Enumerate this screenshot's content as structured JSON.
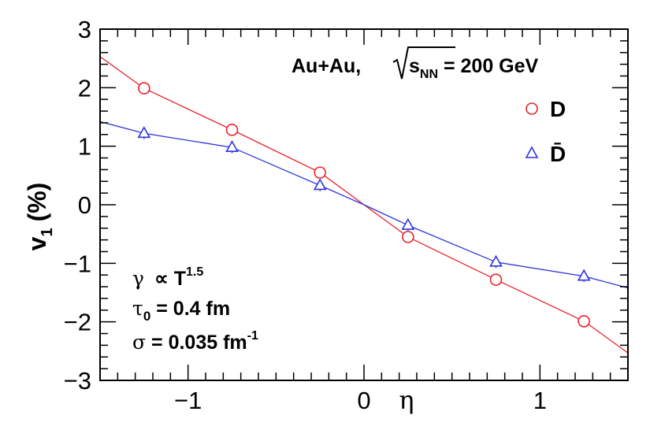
{
  "chart_data": {
    "type": "line",
    "xlabel": "η",
    "ylabel": "v",
    "ylabel_sub": "1",
    "ylabel_unit": "(%)",
    "xlim": [
      -1.5,
      1.5
    ],
    "ylim": [
      -3,
      3
    ],
    "x_ticks": [
      -1,
      0,
      1
    ],
    "x_tick_labels": [
      "−1",
      "0",
      "1"
    ],
    "y_ticks": [
      -3,
      -2,
      -1,
      0,
      1,
      2,
      3
    ],
    "y_tick_labels": [
      "−3",
      "−2",
      "−1",
      "0",
      "1",
      "2",
      "3"
    ],
    "grid": false,
    "legend_position": "top-right",
    "annotations": {
      "system": "Au+Au,",
      "energy_sqrt": "s",
      "energy_sub": "NN",
      "energy_value": " = 200 GeV",
      "gamma_sym": "γ",
      "gamma_rel": " ∝ T",
      "gamma_exp": "1.5",
      "tau_sym": "τ",
      "tau_sub": "0",
      "tau_value": " = 0.4 fm",
      "sigma_sym": "σ",
      "sigma_value": " = 0.035 fm",
      "sigma_exp": "-1"
    },
    "series": [
      {
        "name": "D",
        "color": "#e8242b",
        "marker": "circle",
        "points_x": [
          -1.25,
          -0.75,
          -0.25,
          0.25,
          0.75,
          1.25
        ],
        "points_y": [
          1.99,
          1.28,
          0.55,
          -0.55,
          -1.28,
          -1.99
        ],
        "curve_x": [
          -1.5,
          -1.25,
          -0.75,
          -0.25,
          0.0,
          0.25,
          0.75,
          1.25,
          1.5
        ],
        "curve_y": [
          2.53,
          1.99,
          1.28,
          0.55,
          0.0,
          -0.55,
          -1.28,
          -1.99,
          -2.53
        ]
      },
      {
        "name": "D̄",
        "color": "#2b35d8",
        "marker": "triangle",
        "points_x": [
          -1.25,
          -0.75,
          -0.25,
          0.25,
          0.75,
          1.25
        ],
        "points_y": [
          1.22,
          0.98,
          0.33,
          -0.35,
          -0.98,
          -1.22
        ],
        "errors": [
          0.1,
          0.1,
          0.1,
          0.1,
          0.1,
          0.1
        ],
        "curve_x": [
          -1.5,
          -1.25,
          -0.75,
          -0.25,
          0.0,
          0.25,
          0.75,
          1.25,
          1.5
        ],
        "curve_y": [
          1.42,
          1.22,
          0.98,
          0.33,
          0.0,
          -0.35,
          -0.98,
          -1.22,
          -1.42
        ]
      }
    ]
  }
}
